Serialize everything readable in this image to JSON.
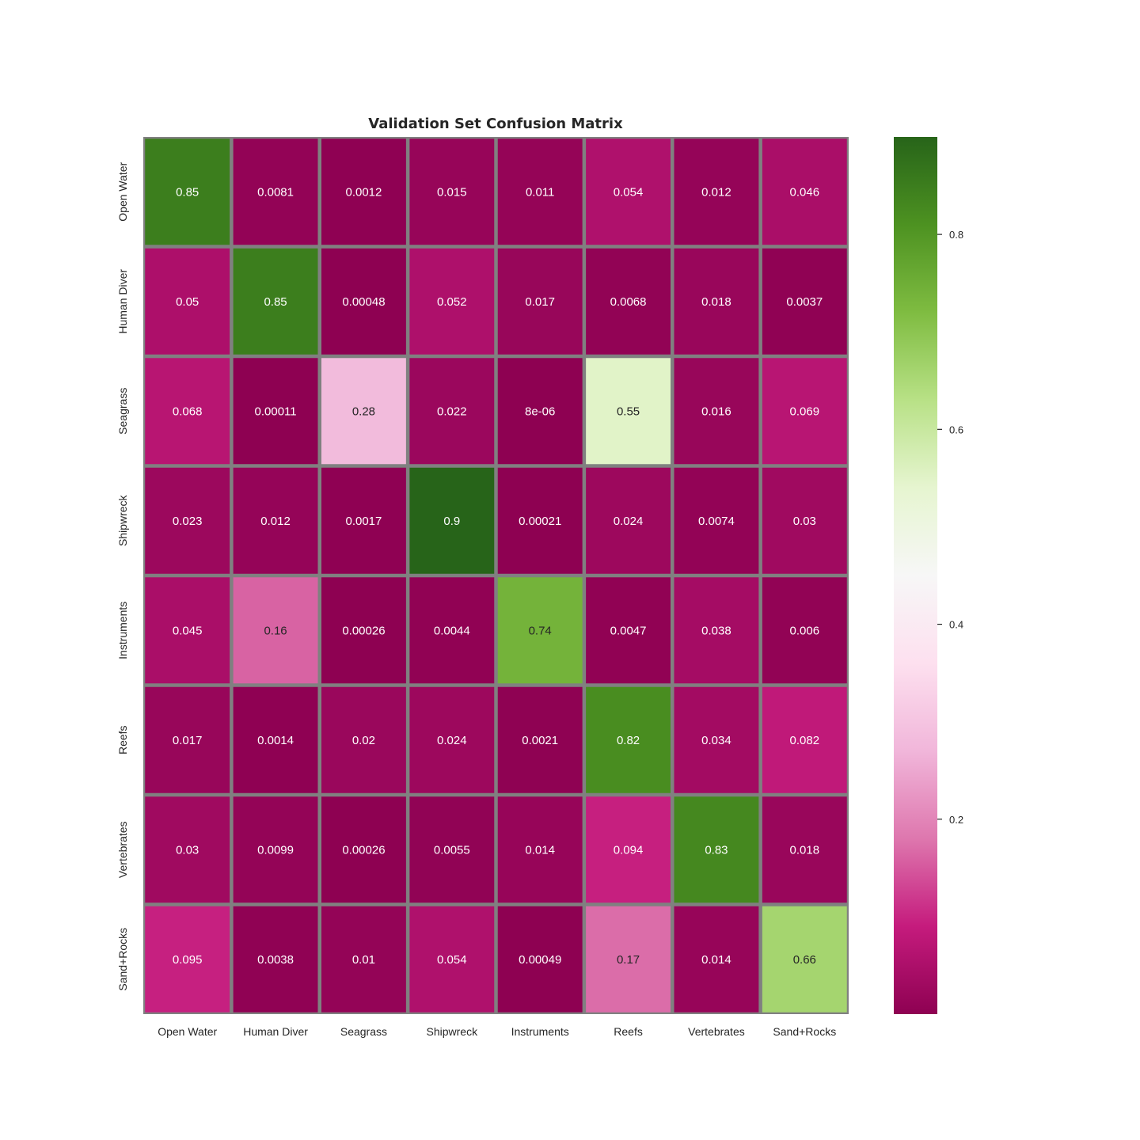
{
  "chart_data": {
    "type": "heatmap",
    "title": "Validation Set Confusion Matrix",
    "xlabel": "",
    "ylabel": "",
    "x_categories": [
      "Open Water",
      "Human Diver",
      "Seagrass",
      "Shipwreck",
      "Instruments",
      "Reefs",
      "Vertebrates",
      "Sand+Rocks"
    ],
    "y_categories": [
      "Open Water",
      "Human Diver",
      "Seagrass",
      "Shipwreck",
      "Instruments",
      "Reefs",
      "Vertebrates",
      "Sand+Rocks"
    ],
    "values": [
      [
        0.85,
        0.0081,
        0.0012,
        0.015,
        0.011,
        0.054,
        0.012,
        0.046
      ],
      [
        0.05,
        0.85,
        0.00048,
        0.052,
        0.017,
        0.0068,
        0.018,
        0.0037
      ],
      [
        0.068,
        0.00011,
        0.28,
        0.022,
        8e-06,
        0.55,
        0.016,
        0.069
      ],
      [
        0.023,
        0.012,
        0.0017,
        0.9,
        0.00021,
        0.024,
        0.0074,
        0.03
      ],
      [
        0.045,
        0.16,
        0.00026,
        0.0044,
        0.74,
        0.0047,
        0.038,
        0.006
      ],
      [
        0.017,
        0.0014,
        0.02,
        0.024,
        0.0021,
        0.82,
        0.034,
        0.082
      ],
      [
        0.03,
        0.0099,
        0.00026,
        0.0055,
        0.014,
        0.094,
        0.83,
        0.018
      ],
      [
        0.095,
        0.0038,
        0.01,
        0.054,
        0.00049,
        0.17,
        0.014,
        0.66
      ]
    ],
    "labels": [
      [
        "0.85",
        "0.0081",
        "0.0012",
        "0.015",
        "0.011",
        "0.054",
        "0.012",
        "0.046"
      ],
      [
        "0.05",
        "0.85",
        "0.00048",
        "0.052",
        "0.017",
        "0.0068",
        "0.018",
        "0.0037"
      ],
      [
        "0.068",
        "0.00011",
        "0.28",
        "0.022",
        "8e-06",
        "0.55",
        "0.016",
        "0.069"
      ],
      [
        "0.023",
        "0.012",
        "0.0017",
        "0.9",
        "0.00021",
        "0.024",
        "0.0074",
        "0.03"
      ],
      [
        "0.045",
        "0.16",
        "0.00026",
        "0.0044",
        "0.74",
        "0.0047",
        "0.038",
        "0.006"
      ],
      [
        "0.017",
        "0.0014",
        "0.02",
        "0.024",
        "0.0021",
        "0.82",
        "0.034",
        "0.082"
      ],
      [
        "0.03",
        "0.0099",
        "0.00026",
        "0.0055",
        "0.014",
        "0.094",
        "0.83",
        "0.018"
      ],
      [
        "0.095",
        "0.0038",
        "0.01",
        "0.054",
        "0.00049",
        "0.17",
        "0.014",
        "0.66"
      ]
    ],
    "colormap": "PiYG",
    "vmin": 0.0,
    "vmax": 0.9,
    "colorbar_ticks": [
      0.2,
      0.4,
      0.6,
      0.8
    ],
    "colorbar_tick_labels": [
      "0.2",
      "0.4",
      "0.6",
      "0.8"
    ],
    "cell_border_color": "#808080",
    "grid": false
  }
}
